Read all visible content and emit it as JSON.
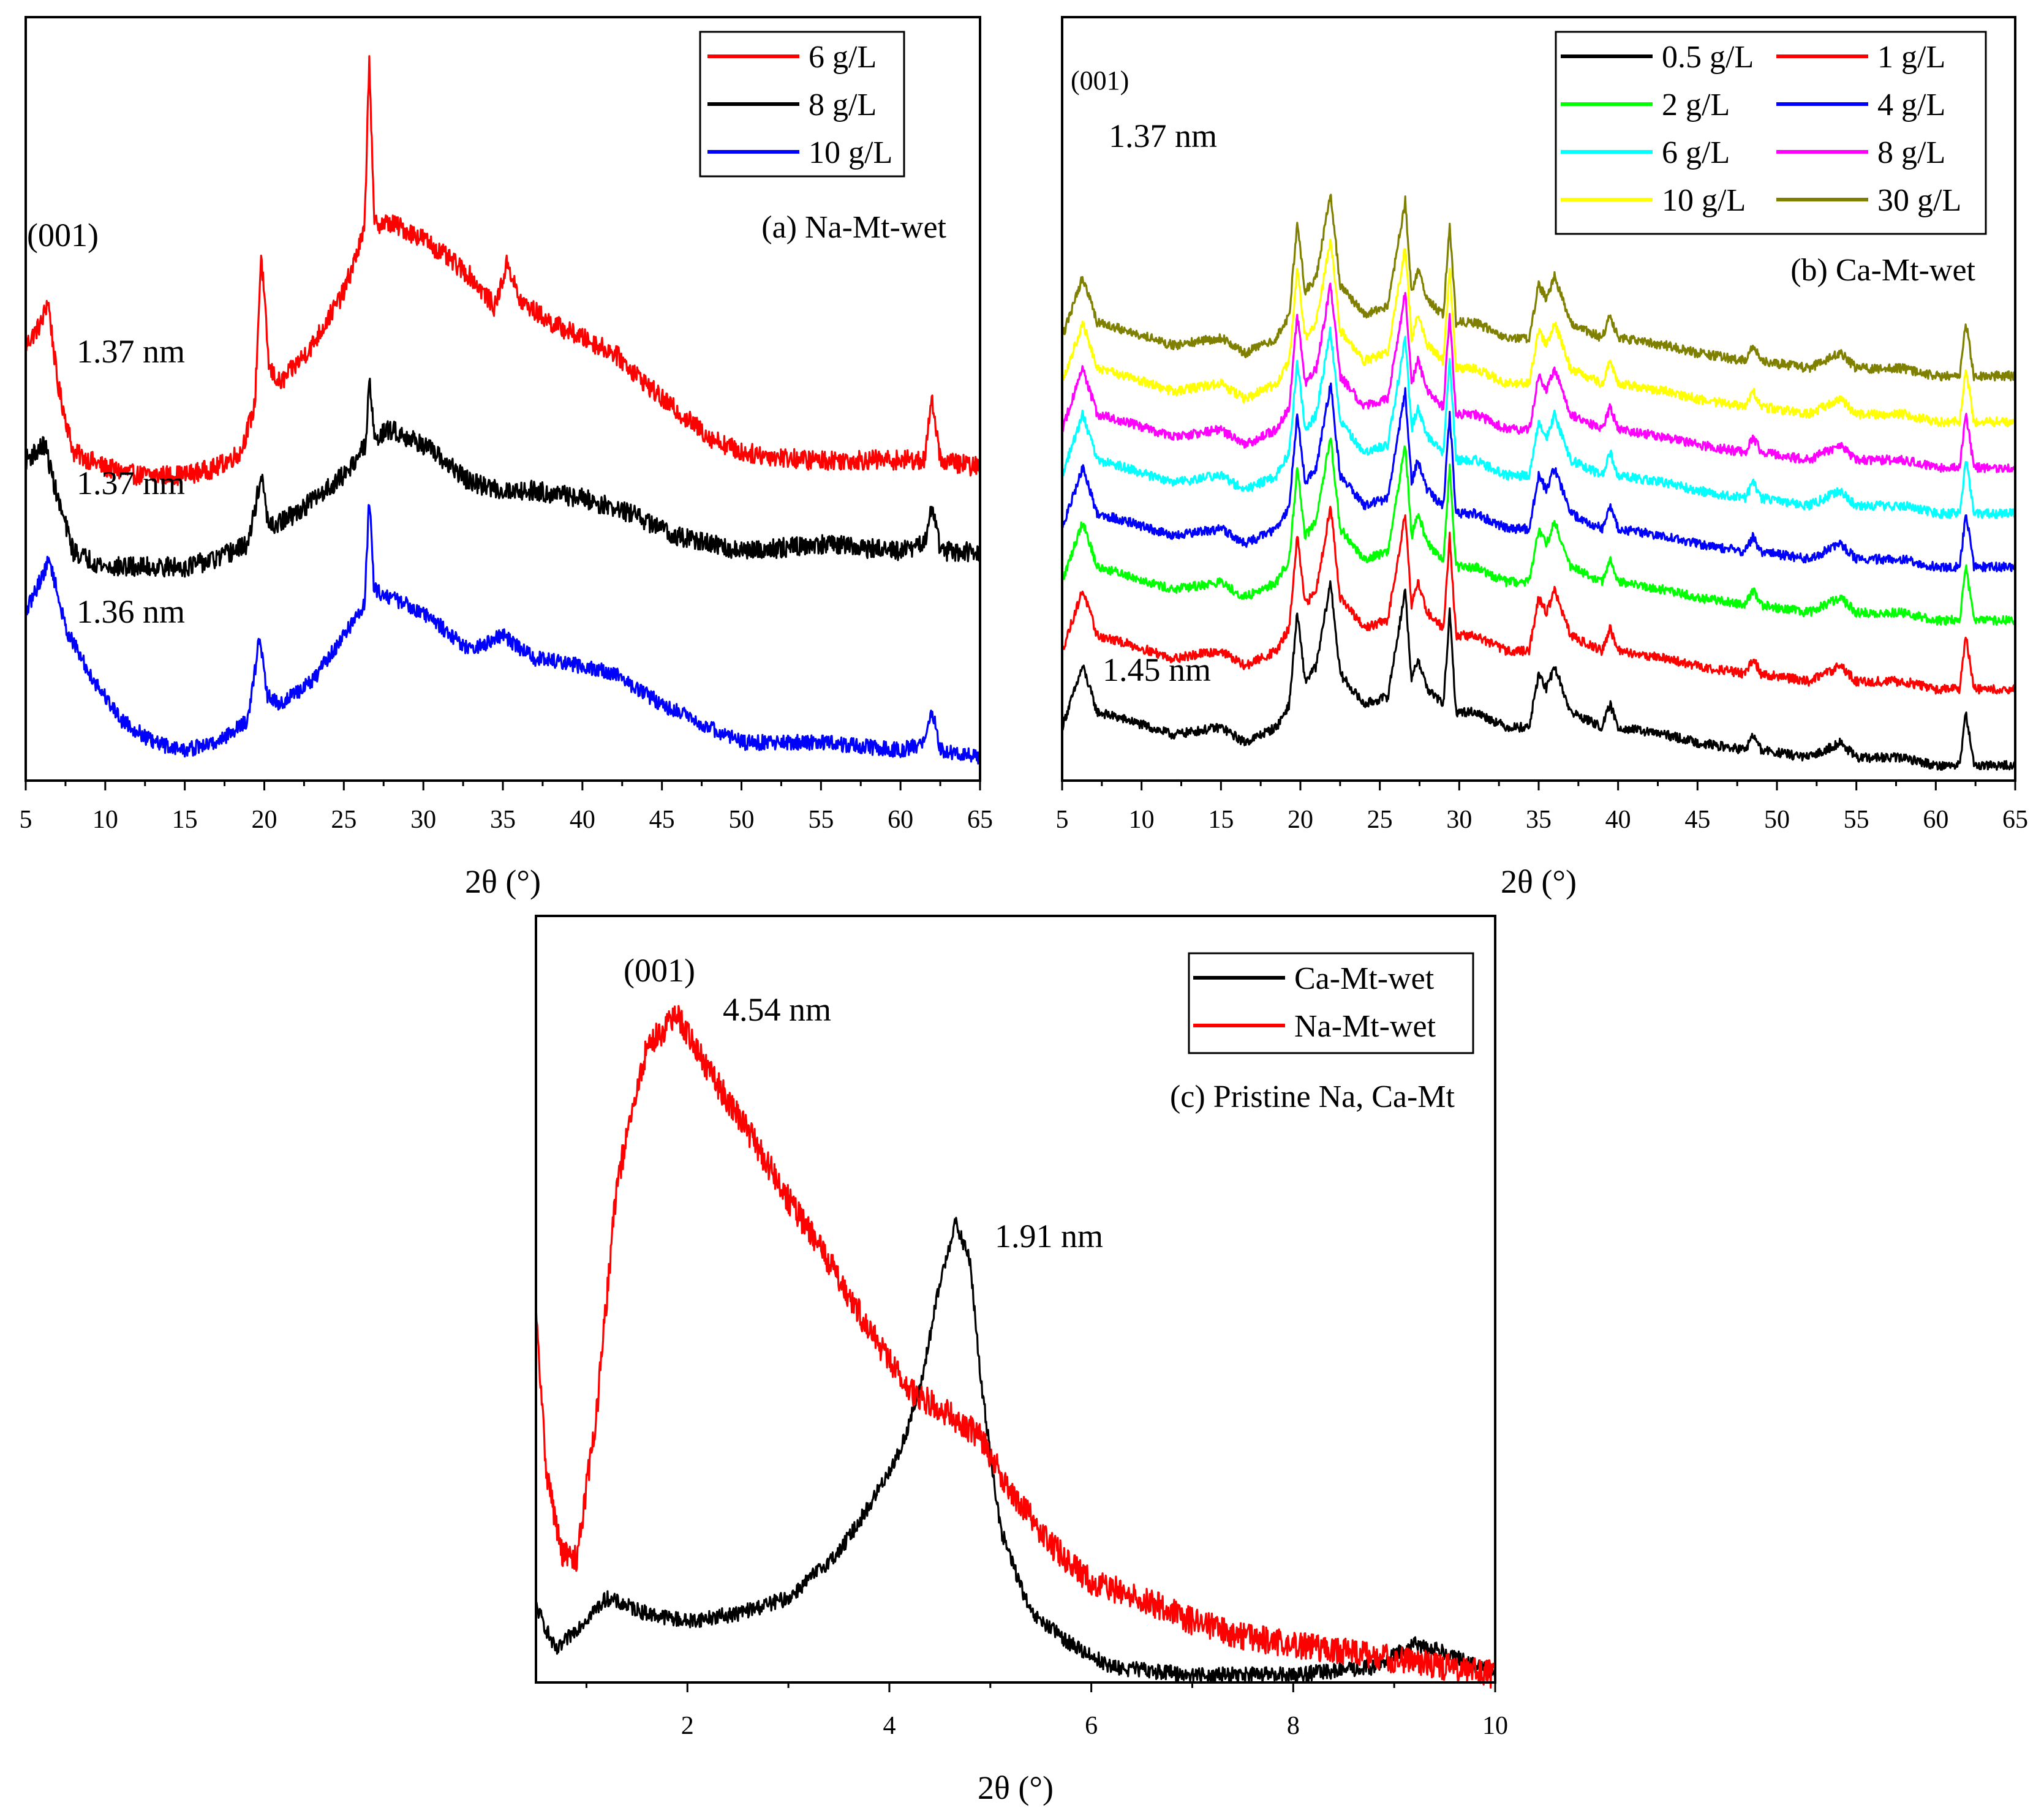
{
  "chart_data": [
    {
      "id": "a",
      "type": "line",
      "panel_label": "(a) Na-Mt-wet",
      "xlabel": "2θ (°)",
      "ylabel": "",
      "xlim": [
        5,
        65
      ],
      "x_ticks": [
        5,
        10,
        15,
        20,
        25,
        30,
        35,
        40,
        45,
        50,
        55,
        60,
        65
      ],
      "y_ticks_shown": false,
      "legend_position": "top-right",
      "annotations": [
        {
          "text": "(001)",
          "x": 7.2,
          "level": 0.77
        },
        {
          "text": "1.37 nm",
          "x": 12.2,
          "level": 0.56
        },
        {
          "text": "1.37 nm",
          "x": 11.2,
          "level": 0.39
        },
        {
          "text": "1.36 nm",
          "x": 12.2,
          "level": 0.21
        }
      ],
      "series": [
        {
          "name": "6 g/L",
          "color": "#ff0000",
          "noise": 0.013,
          "points": [
            [
              5,
              0.57
            ],
            [
              6,
              0.6
            ],
            [
              6.4,
              0.63
            ],
            [
              7,
              0.52
            ],
            [
              8,
              0.43
            ],
            [
              10,
              0.41
            ],
            [
              12,
              0.4
            ],
            [
              15,
              0.4
            ],
            [
              17,
              0.41
            ],
            [
              18.5,
              0.43
            ],
            [
              19.4,
              0.49
            ],
            [
              19.8,
              0.69
            ],
            [
              20.3,
              0.54
            ],
            [
              21,
              0.52
            ],
            [
              23,
              0.57
            ],
            [
              25,
              0.64
            ],
            [
              26.3,
              0.72
            ],
            [
              26.6,
              0.95
            ],
            [
              26.9,
              0.73
            ],
            [
              28,
              0.73
            ],
            [
              30,
              0.71
            ],
            [
              33,
              0.66
            ],
            [
              34.5,
              0.62
            ],
            [
              35.3,
              0.68
            ],
            [
              36,
              0.63
            ],
            [
              38,
              0.6
            ],
            [
              40,
              0.58
            ],
            [
              42,
              0.56
            ],
            [
              45,
              0.5
            ],
            [
              48,
              0.45
            ],
            [
              50,
              0.43
            ],
            [
              54,
              0.42
            ],
            [
              58,
              0.42
            ],
            [
              61.5,
              0.42
            ],
            [
              62,
              0.5
            ],
            [
              62.5,
              0.42
            ],
            [
              65,
              0.41
            ]
          ]
        },
        {
          "name": "8 g/L",
          "color": "#000000",
          "noise": 0.013,
          "points": [
            [
              5,
              0.42
            ],
            [
              6.2,
              0.44
            ],
            [
              7,
              0.37
            ],
            [
              8,
              0.3
            ],
            [
              10,
              0.28
            ],
            [
              12,
              0.28
            ],
            [
              15,
              0.28
            ],
            [
              17,
              0.29
            ],
            [
              19,
              0.31
            ],
            [
              19.8,
              0.4
            ],
            [
              20.3,
              0.33
            ],
            [
              22,
              0.35
            ],
            [
              25,
              0.4
            ],
            [
              26.4,
              0.44
            ],
            [
              26.6,
              0.53
            ],
            [
              26.9,
              0.45
            ],
            [
              28,
              0.46
            ],
            [
              30,
              0.44
            ],
            [
              33,
              0.39
            ],
            [
              35,
              0.38
            ],
            [
              37,
              0.38
            ],
            [
              40,
              0.37
            ],
            [
              43,
              0.35
            ],
            [
              46,
              0.32
            ],
            [
              50,
              0.3
            ],
            [
              55,
              0.31
            ],
            [
              60,
              0.3
            ],
            [
              61.5,
              0.31
            ],
            [
              62,
              0.36
            ],
            [
              62.5,
              0.3
            ],
            [
              65,
              0.3
            ]
          ]
        },
        {
          "name": "10 g/L",
          "color": "#0000ff",
          "noise": 0.01,
          "points": [
            [
              5,
              0.22
            ],
            [
              6.5,
              0.29
            ],
            [
              7.5,
              0.2
            ],
            [
              9,
              0.14
            ],
            [
              11,
              0.08
            ],
            [
              13,
              0.05
            ],
            [
              15,
              0.04
            ],
            [
              17,
              0.05
            ],
            [
              19,
              0.08
            ],
            [
              19.7,
              0.19
            ],
            [
              20.2,
              0.11
            ],
            [
              21,
              0.1
            ],
            [
              23,
              0.13
            ],
            [
              25,
              0.19
            ],
            [
              26.3,
              0.23
            ],
            [
              26.6,
              0.37
            ],
            [
              26.9,
              0.25
            ],
            [
              28,
              0.24
            ],
            [
              30,
              0.22
            ],
            [
              33,
              0.17
            ],
            [
              35,
              0.19
            ],
            [
              37,
              0.16
            ],
            [
              40,
              0.15
            ],
            [
              42,
              0.14
            ],
            [
              45,
              0.1
            ],
            [
              48,
              0.07
            ],
            [
              50,
              0.05
            ],
            [
              55,
              0.05
            ],
            [
              60,
              0.04
            ],
            [
              61.5,
              0.05
            ],
            [
              62,
              0.09
            ],
            [
              62.5,
              0.04
            ],
            [
              65,
              0.03
            ]
          ]
        }
      ]
    },
    {
      "id": "b",
      "type": "line",
      "panel_label": "(b) Ca-Mt-wet",
      "xlabel": "2θ (°)",
      "ylabel": "",
      "xlim": [
        5,
        65
      ],
      "x_ticks": [
        5,
        10,
        15,
        20,
        25,
        30,
        35,
        40,
        45,
        50,
        55,
        60,
        65
      ],
      "y_ticks_shown": false,
      "legend_position": "top-right",
      "annotations": [
        {
          "text": "(001)",
          "x": 6.5,
          "level": 0.91,
          "small": true
        },
        {
          "text": "1.37 nm",
          "x": 11.9,
          "level": 0.85
        },
        {
          "text": "1.45 nm",
          "x": 10.7,
          "level": 0.13
        }
      ],
      "base_profile": [
        [
          5,
          0.0
        ],
        [
          6.3,
          0.08
        ],
        [
          7.2,
          0.02
        ],
        [
          9,
          0.01
        ],
        [
          12,
          -0.01
        ],
        [
          15,
          0.0
        ],
        [
          16.5,
          -0.02
        ],
        [
          18.5,
          0.0
        ],
        [
          19.3,
          0.03
        ],
        [
          19.8,
          0.15
        ],
        [
          20.3,
          0.06
        ],
        [
          21,
          0.08
        ],
        [
          21.9,
          0.19
        ],
        [
          22.5,
          0.07
        ],
        [
          24,
          0.03
        ],
        [
          25.5,
          0.04
        ],
        [
          26.6,
          0.18
        ],
        [
          27,
          0.06
        ],
        [
          27.4,
          0.09
        ],
        [
          28,
          0.05
        ],
        [
          29,
          0.03
        ],
        [
          29.4,
          0.15
        ],
        [
          29.8,
          0.02
        ],
        [
          31,
          0.02
        ],
        [
          33,
          0.0
        ],
        [
          34.4,
          0.0
        ],
        [
          35,
          0.07
        ],
        [
          35.5,
          0.05
        ],
        [
          36,
          0.08
        ],
        [
          37,
          0.02
        ],
        [
          39,
          0.0
        ],
        [
          39.5,
          0.03
        ],
        [
          40,
          0.0
        ],
        [
          43,
          -0.01
        ],
        [
          45,
          -0.02
        ],
        [
          48,
          -0.03
        ],
        [
          48.5,
          -0.01
        ],
        [
          49,
          -0.03
        ],
        [
          52,
          -0.04
        ],
        [
          54,
          -0.02
        ],
        [
          55,
          -0.04
        ],
        [
          58,
          -0.04
        ],
        [
          60,
          -0.05
        ],
        [
          61.5,
          -0.05
        ],
        [
          61.9,
          0.02
        ],
        [
          62.4,
          -0.05
        ],
        [
          65,
          -0.05
        ]
      ],
      "series": [
        {
          "name": "0.5 g/L",
          "color": "#000000",
          "offset": 0.07,
          "noise": 0.006
        },
        {
          "name": "1 g/L",
          "color": "#ff0000",
          "offset": 0.17,
          "noise": 0.006
        },
        {
          "name": "2 g/L",
          "color": "#00ff00",
          "offset": 0.26,
          "noise": 0.006
        },
        {
          "name": "4 g/L",
          "color": "#0000ff",
          "offset": 0.33,
          "noise": 0.006
        },
        {
          "name": "6 g/L",
          "color": "#00ffff",
          "offset": 0.4,
          "noise": 0.006
        },
        {
          "name": "8 g/L",
          "color": "#ff00ff",
          "offset": 0.46,
          "noise": 0.006
        },
        {
          "name": "10 g/L",
          "color": "#ffff00",
          "offset": 0.52,
          "noise": 0.006
        },
        {
          "name": "30 g/L",
          "color": "#808000",
          "offset": 0.58,
          "noise": 0.006
        }
      ]
    },
    {
      "id": "c",
      "type": "line",
      "panel_label": "(c) Pristine Na, Ca-Mt",
      "xlabel": "2θ (°)",
      "ylabel": "",
      "xlim": [
        0.5,
        10
      ],
      "x_ticks": [
        2,
        4,
        6,
        8,
        10
      ],
      "y_ticks_shown": false,
      "legend_position": "top-right",
      "annotations": [
        {
          "text": "(001)",
          "x": 1.95,
          "level": 0.95
        },
        {
          "text": "4.54 nm",
          "x": 3.25,
          "level": 0.91
        },
        {
          "text": "1.91 nm",
          "x": 5.3,
          "level": 0.59
        }
      ],
      "series": [
        {
          "name": "Ca-Mt-wet",
          "color": "#000000",
          "noise": 0.01,
          "points": [
            [
              0.5,
              0.1
            ],
            [
              0.7,
              0.04
            ],
            [
              0.9,
              0.07
            ],
            [
              1.2,
              0.11
            ],
            [
              1.6,
              0.09
            ],
            [
              2.0,
              0.08
            ],
            [
              2.5,
              0.09
            ],
            [
              3.0,
              0.11
            ],
            [
              3.5,
              0.17
            ],
            [
              3.8,
              0.23
            ],
            [
              4.1,
              0.3
            ],
            [
              4.3,
              0.38
            ],
            [
              4.5,
              0.52
            ],
            [
              4.65,
              0.6
            ],
            [
              4.8,
              0.55
            ],
            [
              4.9,
              0.4
            ],
            [
              5.1,
              0.2
            ],
            [
              5.4,
              0.09
            ],
            [
              5.8,
              0.05
            ],
            [
              6.2,
              0.02
            ],
            [
              7.0,
              0.01
            ],
            [
              8.0,
              0.01
            ],
            [
              8.8,
              0.02
            ],
            [
              9.2,
              0.05
            ],
            [
              9.5,
              0.04
            ],
            [
              10.0,
              0.01
            ]
          ]
        },
        {
          "name": "Na-Mt-wet",
          "color": "#ff0000",
          "noise": 0.018,
          "points": [
            [
              0.5,
              0.48
            ],
            [
              0.6,
              0.28
            ],
            [
              0.75,
              0.17
            ],
            [
              0.9,
              0.16
            ],
            [
              1.1,
              0.35
            ],
            [
              1.3,
              0.65
            ],
            [
              1.6,
              0.83
            ],
            [
              1.9,
              0.87
            ],
            [
              2.2,
              0.8
            ],
            [
              2.6,
              0.72
            ],
            [
              3.0,
              0.63
            ],
            [
              3.4,
              0.55
            ],
            [
              3.8,
              0.46
            ],
            [
              4.2,
              0.38
            ],
            [
              4.6,
              0.35
            ],
            [
              4.9,
              0.32
            ],
            [
              5.2,
              0.25
            ],
            [
              5.6,
              0.18
            ],
            [
              6.0,
              0.13
            ],
            [
              6.5,
              0.11
            ],
            [
              7.0,
              0.08
            ],
            [
              7.5,
              0.06
            ],
            [
              8.0,
              0.05
            ],
            [
              9.0,
              0.03
            ],
            [
              10.0,
              0.01
            ]
          ]
        }
      ]
    }
  ]
}
